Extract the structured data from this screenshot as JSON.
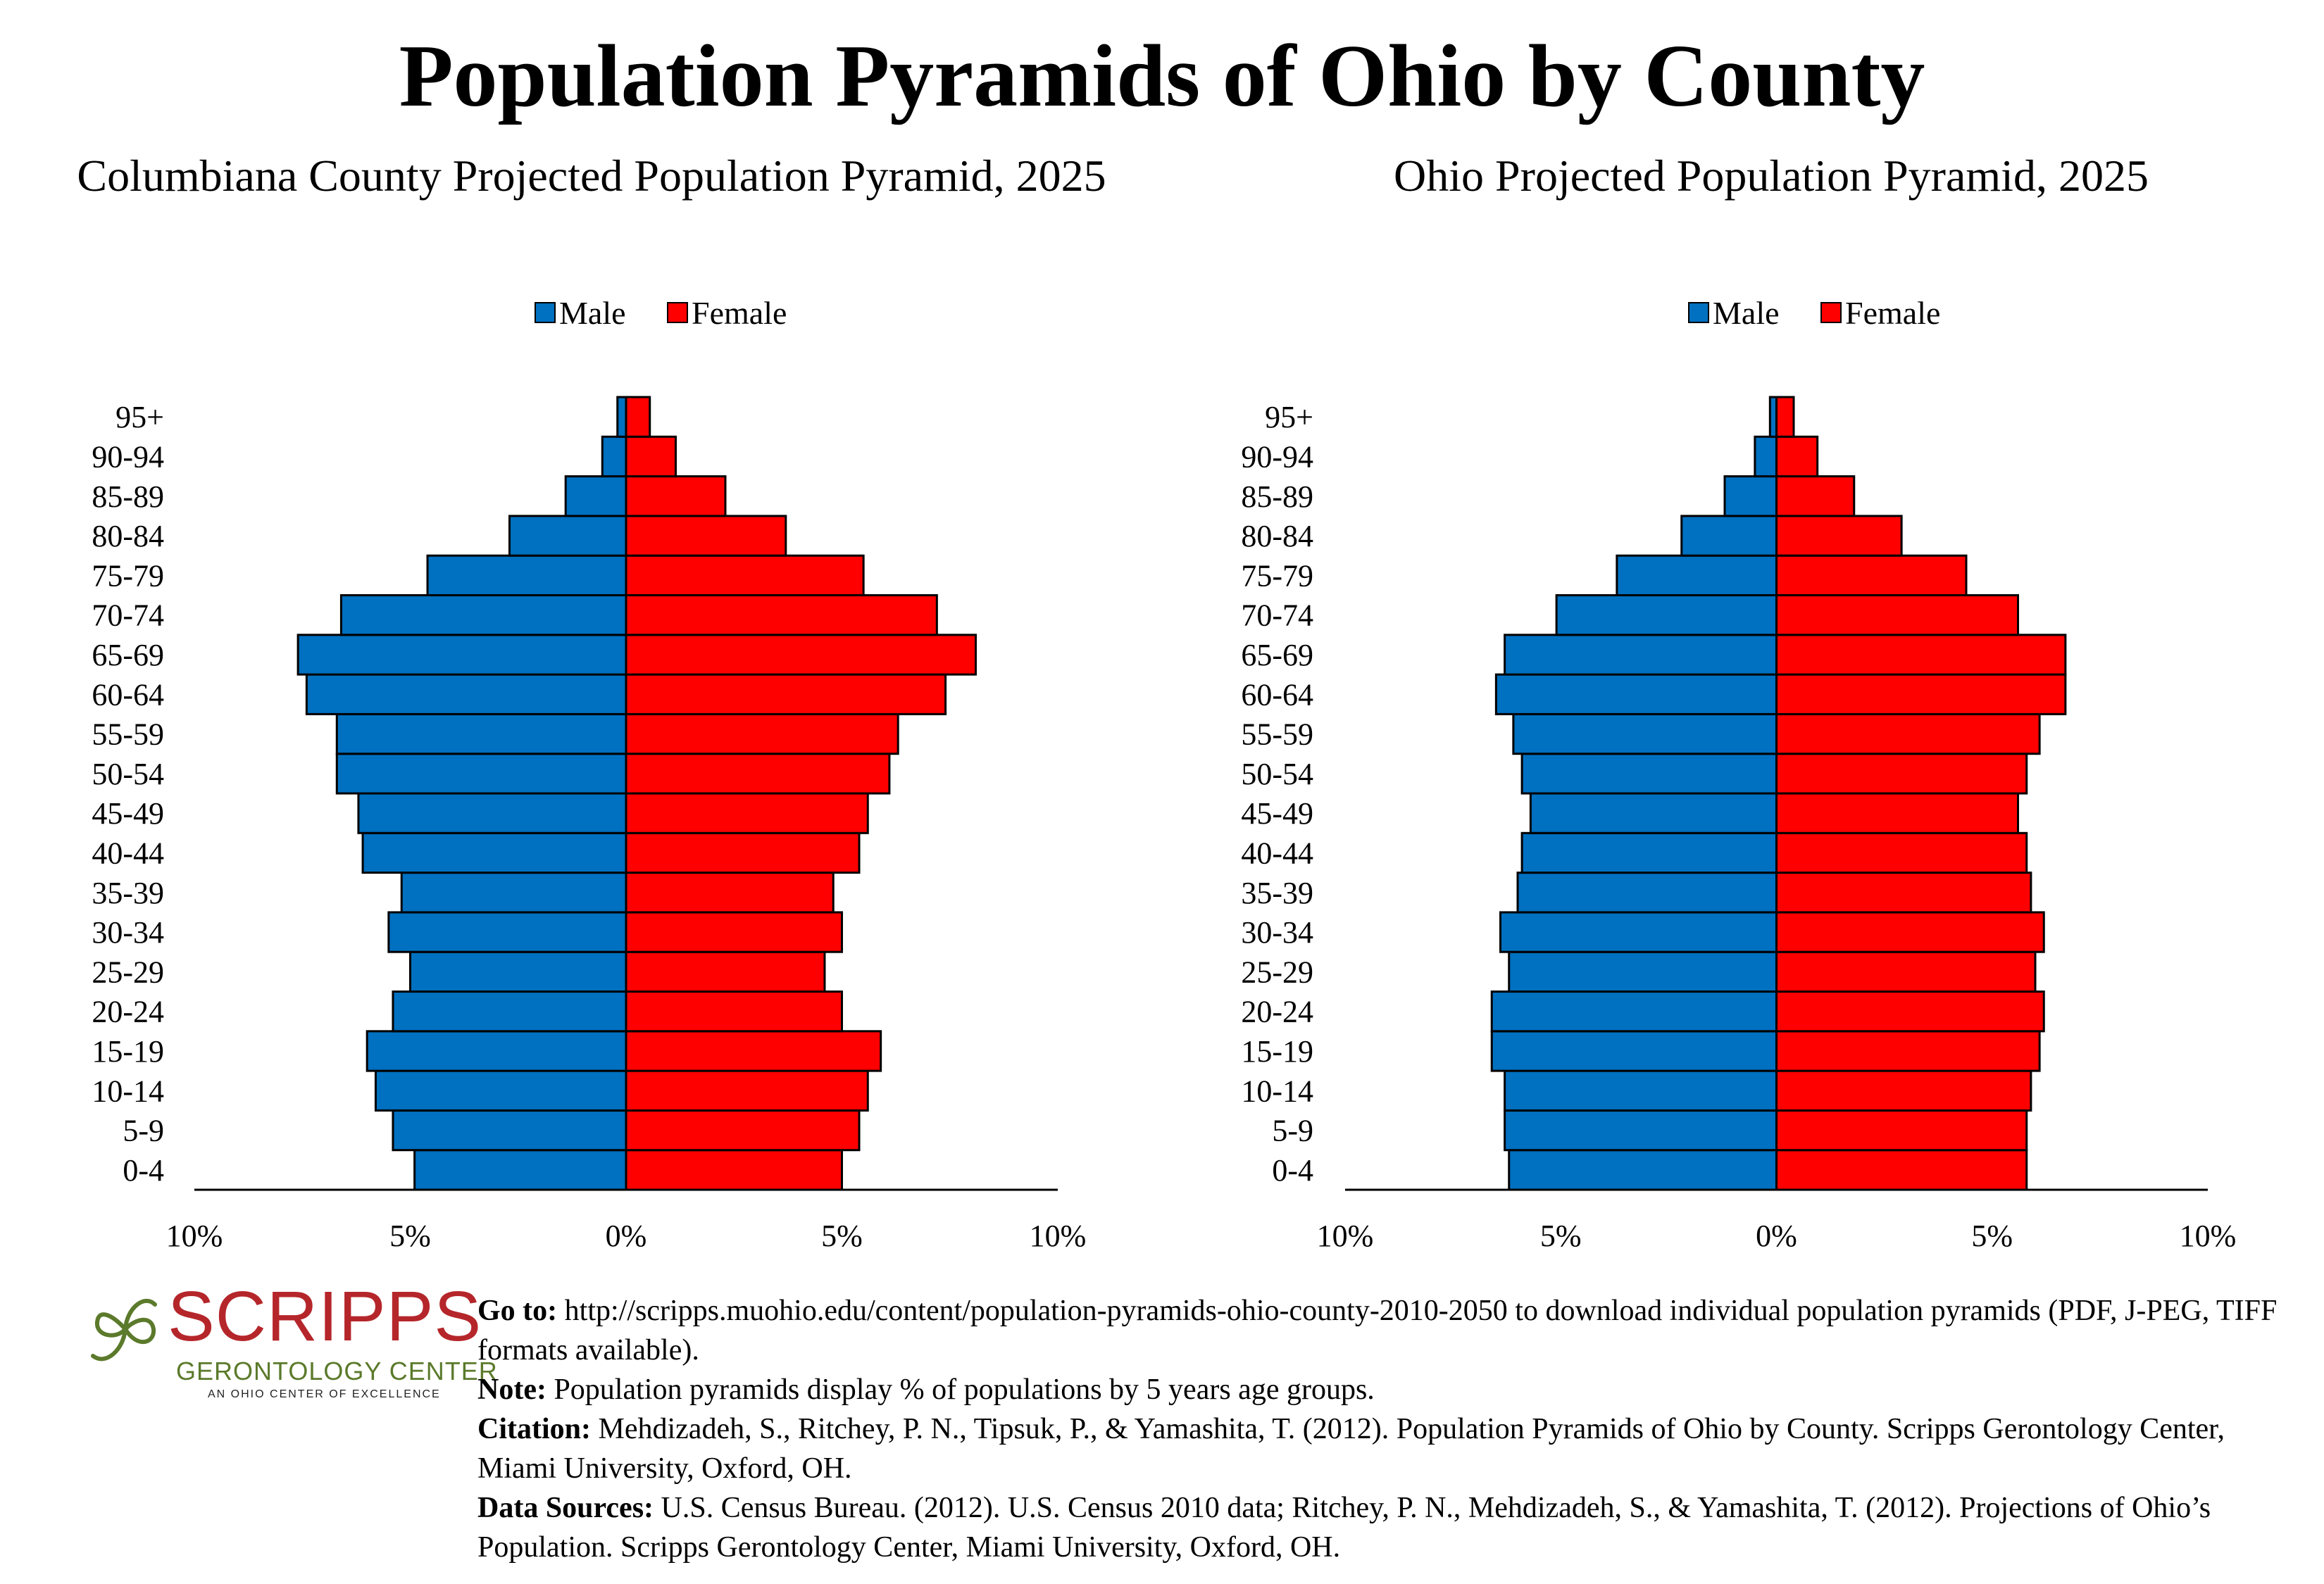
{
  "title": "Population Pyramids of Ohio by County",
  "colors": {
    "male": "#0070c0",
    "female": "#ff0000"
  },
  "legend": {
    "male": "Male",
    "female": "Female"
  },
  "chart_data": [
    {
      "type": "bar",
      "title": "Columbiana County Projected Population Pyramid, 2025",
      "categories": [
        "0-4",
        "5-9",
        "10-14",
        "15-19",
        "20-24",
        "25-29",
        "30-34",
        "35-39",
        "40-44",
        "45-49",
        "50-54",
        "55-59",
        "60-64",
        "65-69",
        "70-74",
        "75-79",
        "80-84",
        "85-89",
        "90-94",
        "95+"
      ],
      "series": [
        {
          "name": "Male",
          "values": [
            4.9,
            5.4,
            5.8,
            6.0,
            5.4,
            5.0,
            5.5,
            5.2,
            6.1,
            6.2,
            6.7,
            6.7,
            7.4,
            7.6,
            6.6,
            4.6,
            2.7,
            1.4,
            0.55,
            0.2
          ]
        },
        {
          "name": "Female",
          "values": [
            5.0,
            5.4,
            5.6,
            5.9,
            5.0,
            4.6,
            5.0,
            4.8,
            5.4,
            5.6,
            6.1,
            6.3,
            7.4,
            8.1,
            7.2,
            5.5,
            3.7,
            2.3,
            1.15,
            0.55
          ]
        }
      ],
      "xlim": [
        -10,
        10
      ],
      "xticks": [
        "10%",
        "5%",
        "0%",
        "5%",
        "10%"
      ]
    },
    {
      "type": "bar",
      "title": "Ohio Projected Population Pyramid, 2025",
      "categories": [
        "0-4",
        "5-9",
        "10-14",
        "15-19",
        "20-24",
        "25-29",
        "30-34",
        "35-39",
        "40-44",
        "45-49",
        "50-54",
        "55-59",
        "60-64",
        "65-69",
        "70-74",
        "75-79",
        "80-84",
        "85-89",
        "90-94",
        "95+"
      ],
      "series": [
        {
          "name": "Male",
          "values": [
            6.2,
            6.3,
            6.3,
            6.6,
            6.6,
            6.2,
            6.4,
            6.0,
            5.9,
            5.7,
            5.9,
            6.1,
            6.5,
            6.3,
            5.1,
            3.7,
            2.2,
            1.2,
            0.5,
            0.15
          ]
        },
        {
          "name": "Female",
          "values": [
            5.8,
            5.8,
            5.9,
            6.1,
            6.2,
            6.0,
            6.2,
            5.9,
            5.8,
            5.6,
            5.8,
            6.1,
            6.7,
            6.7,
            5.6,
            4.4,
            2.9,
            1.8,
            0.95,
            0.4
          ]
        }
      ],
      "xlim": [
        -10,
        10
      ],
      "xticks": [
        "10%",
        "5%",
        "0%",
        "5%",
        "10%"
      ]
    }
  ],
  "logo": {
    "word": "SCRIPPS",
    "subtitle": "GERONTOLOGY CENTER",
    "tagline": "AN OHIO CENTER OF EXCELLENCE"
  },
  "notes": [
    {
      "label": "Go to:",
      "text": " http://scripps.muohio.edu/content/population-pyramids-ohio-county-2010-2050 to download individual population pyramids (PDF, J-PEG, TIFF formats available)."
    },
    {
      "label": "Note:",
      "text": " Population pyramids display % of populations by 5 years age groups."
    },
    {
      "label": "Citation:",
      "text": " Mehdizadeh, S., Ritchey, P. N., Tipsuk, P., & Yamashita, T. (2012). Population Pyramids of Ohio by County. Scripps Gerontology Center, Miami University, Oxford, OH."
    },
    {
      "label": "Data Sources:",
      "text": " U.S. Census Bureau. (2012). U.S. Census 2010 data; Ritchey, P. N., Mehdizadeh, S., & Yamashita, T. (2012). Projections of Ohio’s Population. Scripps Gerontology Center, Miami University, Oxford, OH."
    }
  ]
}
